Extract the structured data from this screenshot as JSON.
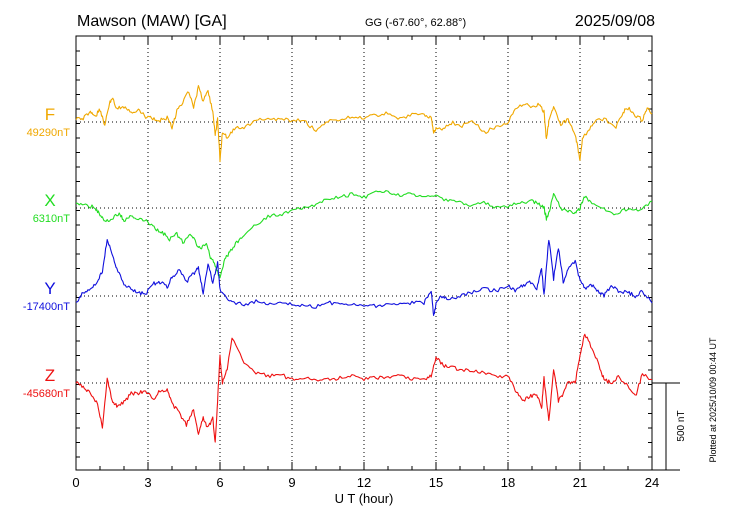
{
  "header": {
    "station": "Mawson (MAW)  [GA]",
    "coords": "GG (-67.60°,  62.88°)",
    "date": "2025/09/08"
  },
  "footer": {
    "plotted": "Plotted at 2025/10/09 00:44 UT",
    "scale": "500 nT"
  },
  "chart_data": {
    "type": "line",
    "xlabel": "U T (hour)",
    "xlim": [
      0,
      24
    ],
    "xticks": [
      0,
      3,
      6,
      9,
      12,
      15,
      18,
      21,
      24
    ],
    "grid": true,
    "scale_bar_nT": 500,
    "series": [
      {
        "name": "F",
        "baseline_label": "49290nT",
        "baseline": 49290,
        "color": "#f0a800",
        "x": [
          0,
          0.3,
          0.6,
          0.8,
          1.0,
          1.2,
          1.4,
          1.5,
          1.7,
          2.0,
          2.3,
          2.6,
          2.9,
          3.2,
          3.5,
          3.8,
          4.0,
          4.2,
          4.4,
          4.7,
          4.9,
          5.1,
          5.3,
          5.5,
          5.7,
          5.8,
          5.9,
          6.0,
          6.1,
          6.3,
          6.6,
          7.0,
          7.5,
          8.0,
          8.5,
          9.0,
          9.5,
          10.0,
          10.5,
          11.0,
          11.5,
          12.0,
          12.5,
          13.0,
          13.5,
          14.0,
          14.5,
          14.8,
          14.9,
          15.0,
          15.3,
          15.7,
          16.0,
          16.5,
          17.0,
          17.5,
          18.0,
          18.3,
          18.7,
          19.0,
          19.3,
          19.5,
          19.6,
          19.7,
          19.9,
          20.2,
          20.5,
          20.8,
          20.9,
          21.0,
          21.1,
          21.3,
          21.6,
          22.0,
          22.5,
          22.8,
          23.0,
          23.3,
          23.6,
          23.8,
          24.0
        ],
        "values": [
          25,
          20,
          55,
          35,
          70,
          -20,
          110,
          140,
          80,
          90,
          60,
          70,
          30,
          20,
          10,
          25,
          -30,
          60,
          100,
          180,
          80,
          200,
          120,
          180,
          60,
          -80,
          20,
          -220,
          -60,
          -90,
          -40,
          -30,
          10,
          20,
          15,
          10,
          5,
          -50,
          10,
          15,
          30,
          20,
          40,
          50,
          20,
          40,
          40,
          20,
          -60,
          -40,
          -40,
          0,
          -30,
          10,
          -60,
          -30,
          0,
          70,
          110,
          80,
          100,
          60,
          -100,
          0,
          90,
          -20,
          20,
          -80,
          -140,
          -220,
          -100,
          -60,
          0,
          20,
          -30,
          60,
          80,
          40,
          10,
          80,
          50
        ]
      },
      {
        "name": "X",
        "baseline_label": "6310nT",
        "baseline": 6310,
        "color": "#22dd22",
        "x": [
          0,
          0.4,
          0.8,
          1.0,
          1.2,
          1.5,
          1.8,
          2.0,
          2.3,
          2.6,
          3.0,
          3.3,
          3.6,
          3.9,
          4.2,
          4.5,
          4.8,
          5.0,
          5.2,
          5.4,
          5.6,
          5.8,
          6.0,
          6.2,
          6.4,
          6.7,
          7.0,
          7.5,
          8.0,
          8.5,
          9.0,
          9.5,
          10.0,
          10.5,
          11.0,
          11.5,
          12.0,
          12.5,
          13.0,
          13.5,
          14.0,
          14.5,
          15.0,
          15.5,
          16.0,
          16.5,
          17.0,
          17.5,
          18.0,
          18.5,
          19.0,
          19.3,
          19.5,
          19.6,
          19.7,
          19.9,
          20.2,
          20.5,
          20.8,
          21.0,
          21.2,
          21.5,
          22.0,
          22.5,
          23.0,
          23.5,
          24.0
        ],
        "values": [
          20,
          20,
          0,
          -40,
          -80,
          -60,
          -30,
          -70,
          -40,
          -60,
          -80,
          -120,
          -140,
          -180,
          -150,
          -200,
          -150,
          -200,
          -240,
          -200,
          -280,
          -330,
          -400,
          -300,
          -250,
          -200,
          -150,
          -100,
          -50,
          -40,
          -10,
          0,
          20,
          50,
          60,
          80,
          60,
          100,
          90,
          70,
          80,
          70,
          70,
          40,
          30,
          10,
          30,
          0,
          10,
          30,
          40,
          20,
          0,
          -60,
          -30,
          80,
          0,
          -20,
          -30,
          0,
          70,
          20,
          -10,
          -40,
          0,
          -20,
          40
        ]
      },
      {
        "name": "Y",
        "baseline_label": "-17400nT",
        "baseline": -17400,
        "color": "#1010dd",
        "x": [
          0,
          0.3,
          0.6,
          0.9,
          1.1,
          1.3,
          1.5,
          1.7,
          2.0,
          2.3,
          2.6,
          2.9,
          3.2,
          3.5,
          3.8,
          4.0,
          4.3,
          4.6,
          4.9,
          5.1,
          5.3,
          5.5,
          5.7,
          5.9,
          6.0,
          6.2,
          6.5,
          7.0,
          7.5,
          8.0,
          8.5,
          9.0,
          9.5,
          10.0,
          10.5,
          11.0,
          11.5,
          12.0,
          12.5,
          13.0,
          13.5,
          14.0,
          14.5,
          14.8,
          14.9,
          15.0,
          15.2,
          15.5,
          16.0,
          16.5,
          17.0,
          17.5,
          18.0,
          18.3,
          18.6,
          18.9,
          19.2,
          19.4,
          19.5,
          19.7,
          19.9,
          20.1,
          20.3,
          20.5,
          20.8,
          21.0,
          21.2,
          21.5,
          21.8,
          22.0,
          22.3,
          22.6,
          23.0,
          23.3,
          23.6,
          24.0
        ],
        "values": [
          -40,
          20,
          30,
          90,
          140,
          330,
          250,
          160,
          70,
          40,
          20,
          10,
          70,
          80,
          50,
          110,
          150,
          80,
          130,
          160,
          20,
          180,
          80,
          190,
          40,
          0,
          -40,
          -50,
          -30,
          -50,
          -40,
          -50,
          -60,
          -60,
          -40,
          -40,
          -50,
          -50,
          -60,
          -40,
          -50,
          -40,
          -40,
          30,
          -120,
          -50,
          0,
          -20,
          0,
          20,
          40,
          30,
          60,
          30,
          60,
          80,
          40,
          160,
          0,
          330,
          100,
          280,
          80,
          150,
          200,
          90,
          40,
          60,
          20,
          0,
          60,
          30,
          20,
          0,
          30,
          -40
        ]
      },
      {
        "name": "Z",
        "baseline_label": "-45680nT",
        "baseline": -45680,
        "color": "#ee1111",
        "x": [
          0,
          0.3,
          0.6,
          0.9,
          1.1,
          1.3,
          1.5,
          1.7,
          2.0,
          2.3,
          2.6,
          2.9,
          3.2,
          3.5,
          3.8,
          4.0,
          4.3,
          4.6,
          4.9,
          5.1,
          5.3,
          5.5,
          5.7,
          5.8,
          5.9,
          6.0,
          6.1,
          6.3,
          6.5,
          7.0,
          7.5,
          8.0,
          8.5,
          9.0,
          9.5,
          10.0,
          10.5,
          11.0,
          11.5,
          12.0,
          12.5,
          13.0,
          13.5,
          14.0,
          14.5,
          14.8,
          15.0,
          15.3,
          15.6,
          16.0,
          16.5,
          17.0,
          17.5,
          18.0,
          18.3,
          18.6,
          18.9,
          19.2,
          19.4,
          19.5,
          19.7,
          19.9,
          20.1,
          20.3,
          20.5,
          20.8,
          21.0,
          21.2,
          21.5,
          21.8,
          22.0,
          22.3,
          22.6,
          23.0,
          23.3,
          23.6,
          24.0
        ],
        "values": [
          0,
          -20,
          -60,
          -120,
          -250,
          30,
          -100,
          -130,
          -110,
          -60,
          -60,
          -40,
          -100,
          -40,
          -40,
          -120,
          -170,
          -240,
          -150,
          -300,
          -200,
          -260,
          -200,
          -350,
          -100,
          150,
          0,
          80,
          260,
          120,
          60,
          40,
          50,
          20,
          30,
          20,
          20,
          30,
          40,
          20,
          30,
          30,
          40,
          20,
          20,
          40,
          150,
          100,
          90,
          80,
          70,
          60,
          40,
          40,
          -40,
          -100,
          -80,
          -60,
          -150,
          30,
          -220,
          80,
          -100,
          -60,
          0,
          0,
          160,
          280,
          200,
          100,
          20,
          0,
          40,
          -20,
          -80,
          50,
          20
        ]
      }
    ]
  }
}
